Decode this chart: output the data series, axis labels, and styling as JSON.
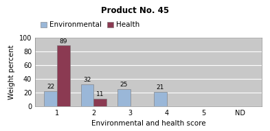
{
  "title": "Product No. 45",
  "xlabel": "Environmental and health score",
  "ylabel": "Weight percent",
  "categories": [
    "1",
    "2",
    "3",
    "4",
    "5",
    "ND"
  ],
  "environmental": [
    22,
    32,
    25,
    21,
    0,
    0
  ],
  "health": [
    89,
    11,
    0,
    0,
    0,
    0
  ],
  "env_color": "#9ab7d8",
  "health_color": "#8b3a52",
  "bar_width": 0.35,
  "ylim": [
    0,
    100
  ],
  "yticks": [
    0,
    20,
    40,
    60,
    80,
    100
  ],
  "env_label": "Environmental",
  "health_label": "Health",
  "plot_bg": "#c8c8c8",
  "figure_bg": "#ffffff",
  "title_fontsize": 8.5,
  "axis_fontsize": 7.5,
  "tick_fontsize": 7,
  "legend_fontsize": 7.5,
  "annotation_fontsize": 6.5
}
